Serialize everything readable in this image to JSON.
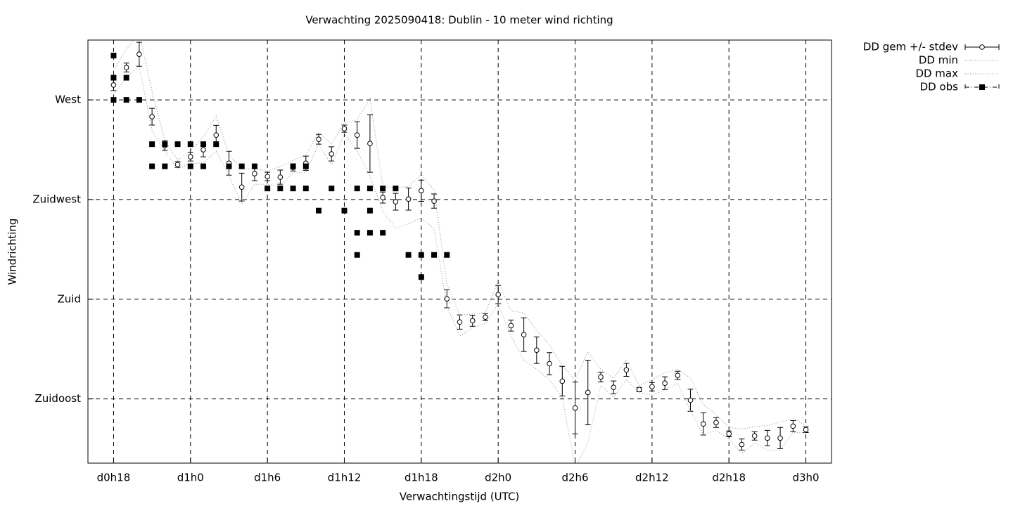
{
  "chart_data": {
    "type": "line",
    "title": "Verwachting 2025090418: Dublin - 10 meter wind richting",
    "xlabel": "Verwachtingstijd (UTC)",
    "ylabel": "Windrichting",
    "grid": true,
    "legend": "outside-top-right",
    "xlim": [
      16,
      74
    ],
    "ylim": [
      106,
      297
    ],
    "xticks": [
      {
        "value": 18,
        "label": "d0h18"
      },
      {
        "value": 24,
        "label": "d1h0"
      },
      {
        "value": 30,
        "label": "d1h6"
      },
      {
        "value": 36,
        "label": "d1h12"
      },
      {
        "value": 42,
        "label": "d1h18"
      },
      {
        "value": 48,
        "label": "d2h0"
      },
      {
        "value": 54,
        "label": "d2h6"
      },
      {
        "value": 60,
        "label": "d2h12"
      },
      {
        "value": 66,
        "label": "d2h18"
      },
      {
        "value": 72,
        "label": "d3h0"
      }
    ],
    "yticks": [
      {
        "value": 135,
        "label": "Zuidoost"
      },
      {
        "value": 180,
        "label": "Zuid"
      },
      {
        "value": 225,
        "label": "Zuidwest"
      },
      {
        "value": 270,
        "label": "West"
      }
    ],
    "x": [
      18,
      19,
      20,
      21,
      22,
      23,
      24,
      25,
      26,
      27,
      28,
      29,
      30,
      31,
      32,
      33,
      34,
      35,
      36,
      37,
      38,
      39,
      40,
      41,
      42,
      43,
      44,
      45,
      46,
      47,
      48,
      49,
      50,
      51,
      52,
      53,
      54,
      55,
      56,
      57,
      58,
      59,
      60,
      61,
      62,
      63,
      64,
      65,
      66,
      67,
      68,
      69,
      70,
      71,
      72
    ],
    "series": [
      {
        "name": "DD gem +/- stdev",
        "color": "#000000",
        "style": "errorbars",
        "values": [
          276.7,
          284.6,
          290.6,
          262.4,
          249.4,
          240.8,
          244.3,
          247.5,
          254.1,
          241.4,
          230.6,
          236.7,
          235.4,
          235.1,
          239.5,
          241.4,
          252.2,
          245.6,
          257.0,
          254.1,
          250.3,
          225.9,
          224.0,
          225.2,
          229.0,
          224.3,
          180.2,
          169.7,
          170.3,
          171.9,
          182.1,
          168.1,
          164.0,
          157.0,
          150.9,
          143.0,
          130.9,
          137.9,
          144.9,
          140.2,
          148.1,
          139.2,
          140.5,
          142.1,
          145.6,
          134.4,
          123.7,
          124.3,
          119.2,
          114.4,
          118.3,
          117.3,
          117.3,
          122.7,
          121.1
        ],
        "errors": [
          2.5,
          2,
          5.4,
          3.8,
          2.2,
          1.3,
          1.9,
          3.2,
          4.4,
          5.4,
          6.3,
          3.2,
          1.9,
          3.2,
          1.6,
          3.2,
          2.2,
          3.2,
          1.6,
          6,
          13,
          2.5,
          3.8,
          5,
          4.8,
          3.2,
          4.1,
          3.2,
          2.5,
          1.6,
          4.1,
          2.5,
          7.6,
          6,
          5,
          6.7,
          11.7,
          14.6,
          2.2,
          2.9,
          2.9,
          1,
          1.9,
          2.9,
          1.9,
          5,
          5,
          2.2,
          1.3,
          2.5,
          1.9,
          3.5,
          4.8,
          2.5,
          1.3
        ]
      },
      {
        "name": "DD min",
        "color": "#a0a0a0",
        "style": "dotted",
        "values": [
          272.2,
          280.2,
          285.1,
          256.3,
          246.8,
          238.9,
          241.4,
          241.4,
          246.8,
          235.7,
          223,
          231.9,
          231.9,
          231,
          237.3,
          237.3,
          250,
          240.5,
          254.8,
          246.8,
          235.7,
          219.8,
          211.9,
          214.1,
          216.7,
          211.9,
          177,
          163.3,
          167.1,
          169,
          177.9,
          163.3,
          152.5,
          148.4,
          143.7,
          135.7,
          104,
          115.1,
          141.1,
          135.7,
          143.7,
          137.9,
          136.7,
          138.9,
          142.1,
          129.4,
          118.9,
          120.8,
          116.7,
          110.3,
          115.1,
          111.9,
          111.9,
          119.8,
          119.8
        ]
      },
      {
        "name": "DD max",
        "color": "#a0a0a0",
        "style": "dotted",
        "values": [
          283.3,
          292.9,
          300.2,
          273.8,
          251.6,
          242.7,
          246.8,
          253.2,
          262.7,
          245.2,
          238.9,
          238.9,
          237.9,
          239.8,
          242.7,
          245.2,
          255.4,
          250,
          259.5,
          261.1,
          270.6,
          231,
          230.3,
          231,
          236.3,
          229.4,
          186.5,
          172.9,
          173.2,
          173.8,
          188.1,
          174.8,
          173.8,
          165.9,
          159.5,
          150,
          143.7,
          156.3,
          148.4,
          144.3,
          152.5,
          141.1,
          143.7,
          146.8,
          148.4,
          144.3,
          132.5,
          127.8,
          122.1,
          121.4,
          122.4,
          123,
          124.6,
          126.2,
          123
        ]
      },
      {
        "name": "DD obs",
        "color": "#000000",
        "style": "squares",
        "x": [
          18,
          18,
          18,
          19,
          19,
          20,
          21,
          21,
          22,
          22,
          23,
          24,
          24,
          25,
          25,
          26,
          27,
          28,
          29,
          30,
          31,
          32,
          32,
          33,
          33,
          34,
          35,
          36,
          37,
          37,
          37,
          38,
          38,
          38,
          39,
          39,
          40,
          41,
          42,
          42,
          43,
          44
        ],
        "values": [
          290,
          280,
          270,
          280,
          270,
          270,
          250,
          240,
          250,
          240,
          250,
          250,
          240,
          250,
          240,
          250,
          240,
          240,
          240,
          230,
          230,
          240,
          230,
          240,
          230,
          220,
          230,
          220,
          230,
          210,
          200,
          230,
          220,
          210,
          230,
          210,
          230,
          200,
          200,
          190,
          200,
          200
        ]
      }
    ]
  }
}
